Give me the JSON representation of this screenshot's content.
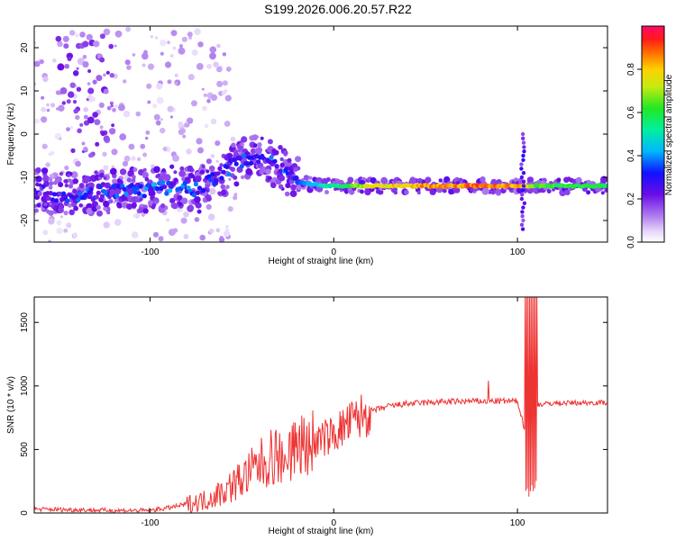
{
  "title": "S199.2026.006.20.57.R22",
  "colors": {
    "snr_line": "#ee3333",
    "frame": "#000000",
    "background": "#ffffff"
  },
  "chart_data": [
    {
      "type": "heatmap",
      "name": "spectrogram",
      "xlabel": "Height of straight line (km)",
      "ylabel": "Frequency (Hz)",
      "xlim": [
        -163,
        149
      ],
      "ylim": [
        -25,
        25
      ],
      "xticks": [
        -100,
        0,
        100
      ],
      "yticks": [
        20,
        10,
        0,
        -10,
        -20
      ],
      "colorbar": {
        "label": "Normalized spectral amplitude",
        "range": [
          0,
          1
        ],
        "ticks": [
          "0.0",
          "0.2",
          "0.4",
          "0.6",
          "0.8"
        ],
        "tick_values": [
          0,
          0.2,
          0.4,
          0.6,
          0.8
        ]
      },
      "ridge": [
        {
          "x": -163,
          "f": -13,
          "a": 0.25
        },
        {
          "x": -150,
          "f": -14,
          "a": 0.3
        },
        {
          "x": -135,
          "f": -14,
          "a": 0.3
        },
        {
          "x": -120,
          "f": -13,
          "a": 0.3
        },
        {
          "x": -100,
          "f": -13,
          "a": 0.35
        },
        {
          "x": -85,
          "f": -12,
          "a": 0.35
        },
        {
          "x": -75,
          "f": -13,
          "a": 0.3
        },
        {
          "x": -65,
          "f": -10,
          "a": 0.3
        },
        {
          "x": -50,
          "f": -6,
          "a": 0.3
        },
        {
          "x": -40,
          "f": -5,
          "a": 0.3
        },
        {
          "x": -30,
          "f": -8,
          "a": 0.3
        },
        {
          "x": -20,
          "f": -11,
          "a": 0.35
        },
        {
          "x": -5,
          "f": -12,
          "a": 0.5
        },
        {
          "x": 20,
          "f": -12,
          "a": 0.75
        },
        {
          "x": 50,
          "f": -12,
          "a": 0.85
        },
        {
          "x": 80,
          "f": -12,
          "a": 0.9
        },
        {
          "x": 100,
          "f": -12,
          "a": 0.85
        },
        {
          "x": 110,
          "f": -12,
          "a": 0.65
        },
        {
          "x": 149,
          "f": -12,
          "a": 0.6
        }
      ]
    },
    {
      "type": "line",
      "name": "snr",
      "xlabel": "Height of straight line (km)",
      "ylabel": "SNR (10 * v/v)",
      "xlim": [
        -163,
        149
      ],
      "ylim": [
        0,
        1700
      ],
      "xticks": [
        -100,
        0,
        100
      ],
      "yticks": [
        0,
        500,
        1000,
        1500
      ],
      "x": [
        -163,
        -140,
        -120,
        -100,
        -90,
        -80,
        -70,
        -60,
        -50,
        -40,
        -30,
        -20,
        -10,
        0,
        10,
        20,
        30,
        40,
        60,
        80,
        100,
        105,
        106,
        108,
        110,
        120,
        149
      ],
      "values": [
        30,
        25,
        20,
        20,
        40,
        70,
        100,
        170,
        270,
        380,
        470,
        500,
        560,
        620,
        720,
        800,
        840,
        860,
        875,
        880,
        880,
        600,
        1650,
        200,
        850,
        865,
        870
      ]
    }
  ]
}
